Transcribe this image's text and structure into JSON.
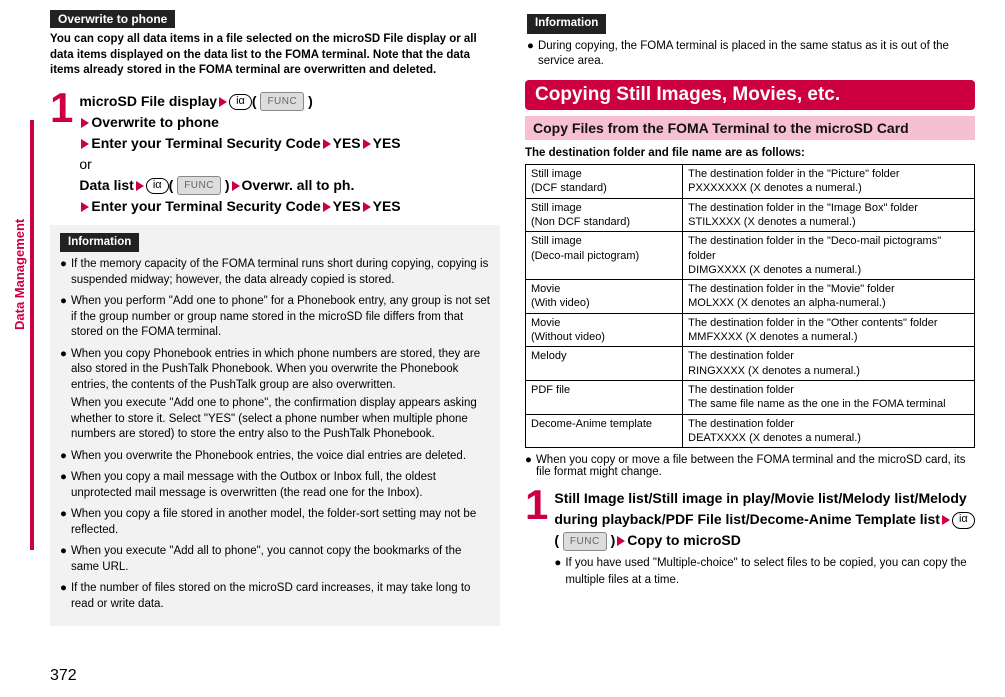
{
  "pageNumber": "372",
  "sideTab": "Data Management",
  "leftCol": {
    "overwriteTag": "Overwrite to phone",
    "intro": "You can copy all data items in a file selected on the microSD File display or all data items displayed on the data list to the FOMA terminal. Note that the data items already stored in the FOMA terminal are overwritten and deleted.",
    "step": {
      "line1_a": "microSD File display",
      "line1_key": "iα",
      "line1_func": "FUNC",
      "line2": "Overwrite to phone",
      "line3_a": "Enter your Terminal Security Code",
      "line3_b": "YES",
      "line3_c": "YES",
      "or": "or",
      "line4_a": "Data list",
      "line4_key": "iα",
      "line4_func": "FUNC",
      "line4_b": "Overwr. all to ph.",
      "line5_a": "Enter your Terminal Security Code",
      "line5_b": "YES",
      "line5_c": "YES"
    },
    "infoLabel": "Information",
    "infoItems": [
      "If the memory capacity of the FOMA terminal runs short during copying, copying is suspended midway; however, the data already copied is stored.",
      "When you perform \"Add one to phone\" for a Phonebook entry, any group is not set if the group number or group name stored in the microSD file differs from that stored on the FOMA terminal.",
      "When you copy Phonebook entries in which phone numbers are stored, they are also stored in the PushTalk Phonebook. When you overwrite the Phonebook entries, the contents of the PushTalk group are also overwritten.\nWhen you execute \"Add one to phone\", the confirmation display appears asking whether to store it. Select \"YES\" (select a phone number when multiple phone numbers are stored) to store the entry also to the PushTalk Phonebook.",
      "When you overwrite the Phonebook entries, the voice dial entries are deleted.",
      "When you copy a mail message with the Outbox or Inbox full, the oldest unprotected mail message is overwritten (the read one for the Inbox).",
      "When you copy a file stored in another model, the folder-sort setting may not be reflected.",
      "When you execute \"Add all to phone\", you cannot copy the bookmarks of the same URL.",
      "If the number of files stored on the microSD card increases, it may take long to read or write data."
    ]
  },
  "rightCol": {
    "infoLabel": "Information",
    "topInfo": "During copying, the FOMA terminal is placed in the same status as it is out of the service area.",
    "sectionTitle": "Copying Still Images, Movies, etc.",
    "subTitle": "Copy Files from the FOMA Terminal to the microSD Card",
    "destIntro": "The destination folder and file name are as follows:",
    "table": [
      {
        "type": "Still image\n(DCF standard)",
        "dest": "The destination folder in the \"Picture\" folder\nPXXXXXXX (X denotes a numeral.)"
      },
      {
        "type": "Still image\n(Non DCF standard)",
        "dest": "The destination folder in the \"Image Box\" folder\nSTILXXXX (X denotes a numeral.)"
      },
      {
        "type": "Still image\n(Deco-mail pictogram)",
        "dest": "The destination folder in the \"Deco-mail pictograms\" folder\nDIMGXXXX (X denotes a numeral.)"
      },
      {
        "type": "Movie\n(With video)",
        "dest": "The destination folder in the \"Movie\" folder\nMOLXXX (X denotes an alpha-numeral.)"
      },
      {
        "type": "Movie\n(Without video)",
        "dest": "The destination folder in the \"Other contents\" folder\nMMFXXXX (X denotes a numeral.)"
      },
      {
        "type": "Melody",
        "dest": "The destination folder\nRINGXXXX (X denotes a numeral.)"
      },
      {
        "type": "PDF file",
        "dest": "The destination folder\nThe same file name as the one in the FOMA terminal"
      },
      {
        "type": "Decome-Anime template",
        "dest": "The destination folder\nDEATXXXX (X denotes a numeral.)"
      }
    ],
    "tableFootnote": "When you copy or move a file between the FOMA terminal and the microSD card, its file format might change.",
    "step": {
      "line1": "Still Image list/Still image in play/Movie list/Melody list/Melody during playback/PDF File list/Decome-Anime Template list",
      "key": "iα",
      "func": "FUNC",
      "line1_end": "Copy to microSD",
      "footnote": "If you have used \"Multiple-choice\" to select files to be copied, you can copy the multiple files at a time."
    }
  }
}
